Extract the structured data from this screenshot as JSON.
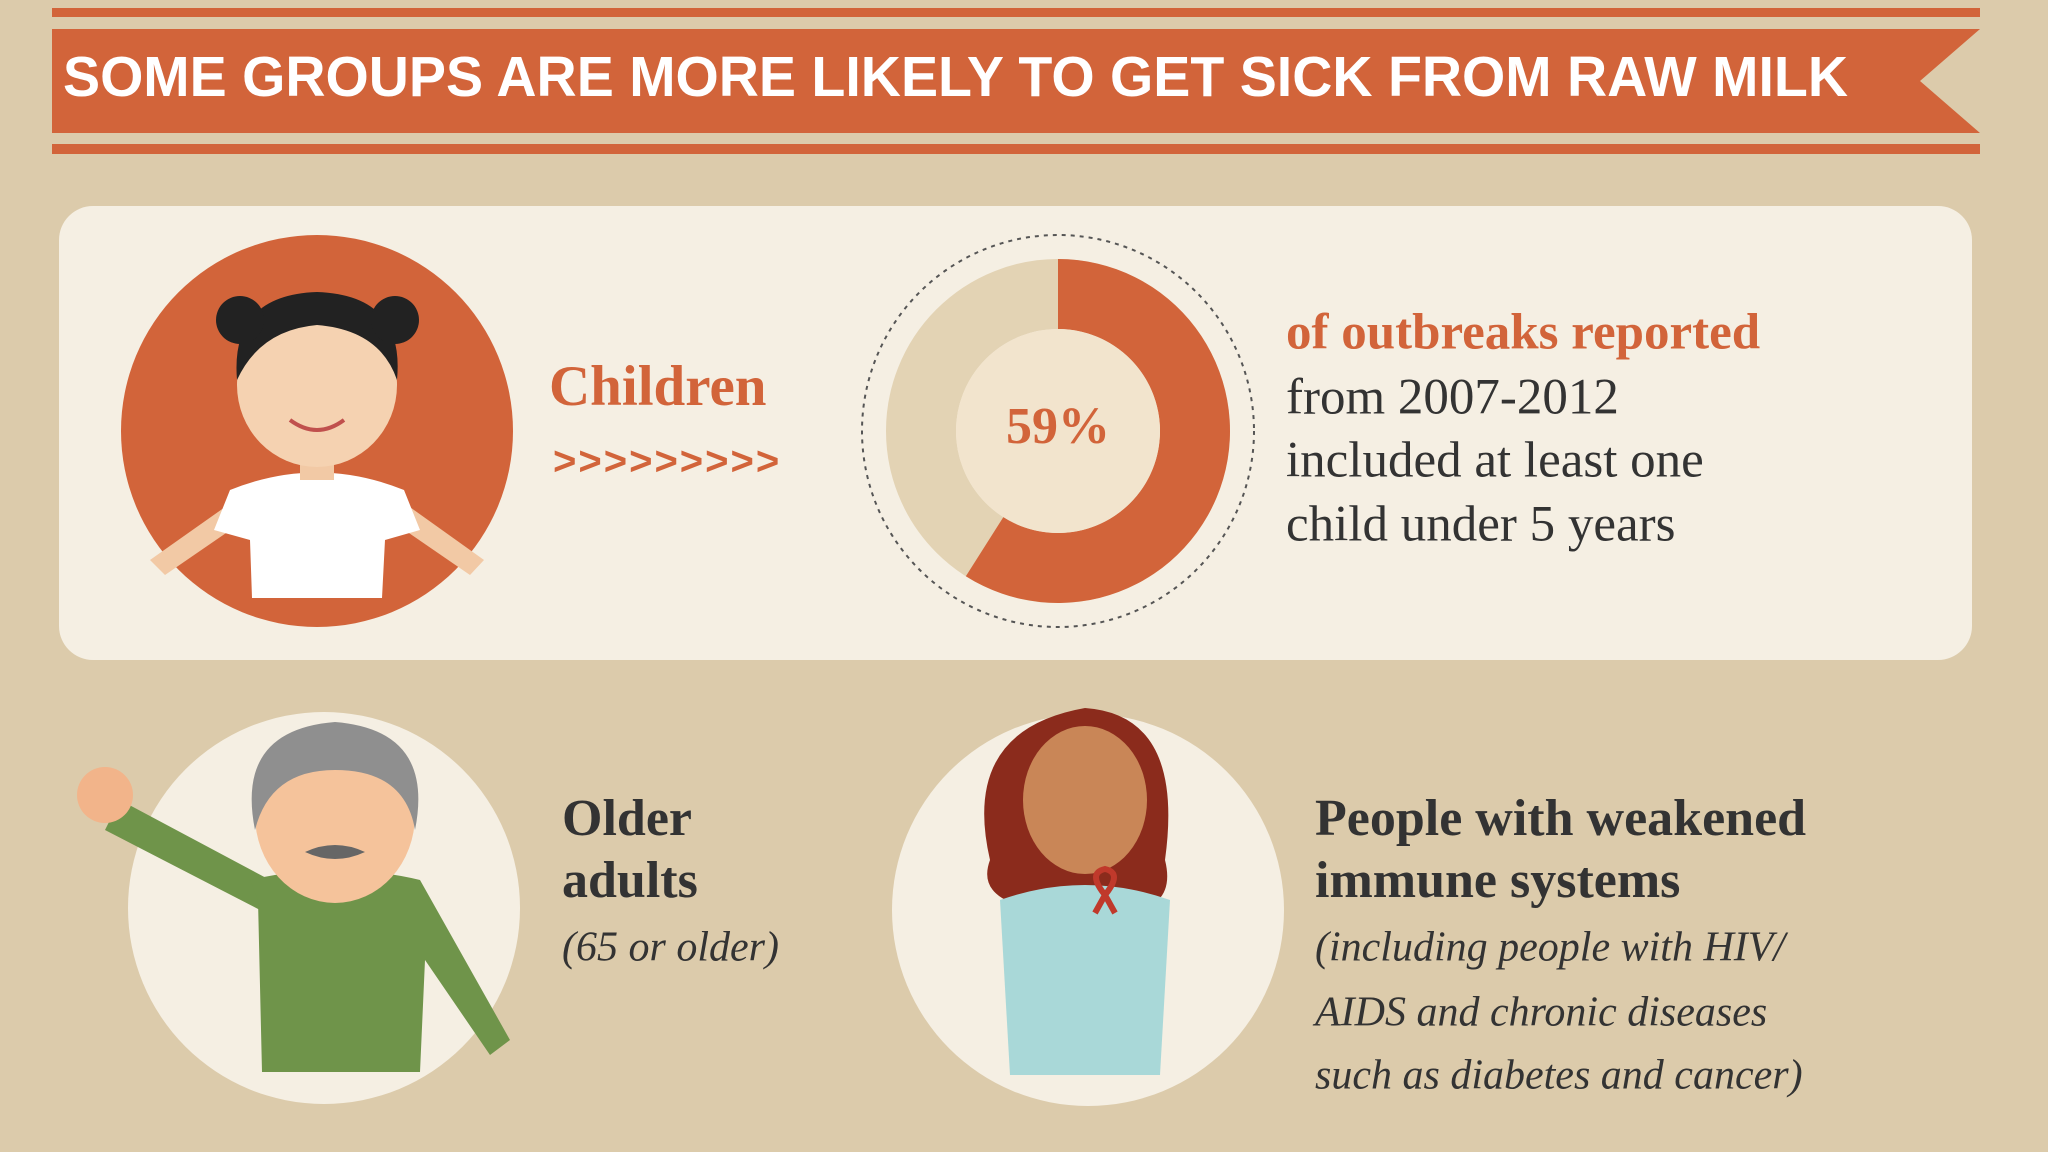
{
  "header": {
    "title": "SOME GROUPS ARE MORE LIKELY TO GET SICK FROM RAW MILK"
  },
  "children": {
    "label": "Children",
    "arrows": ">>>>>>>>>",
    "stat": {
      "value": 59,
      "label": "59%"
    },
    "description": [
      "of outbreaks reported",
      "from 2007-2012",
      "included at least one",
      "child under 5 years"
    ]
  },
  "older_adults": {
    "label": [
      "Older",
      "adults"
    ],
    "note": "(65 or older)"
  },
  "immune": {
    "label": [
      "People with weakened",
      "immune systems"
    ],
    "note": [
      "(including  people with HIV/",
      "AIDS and chronic diseases",
      "such as diabetes and cancer)"
    ]
  }
}
